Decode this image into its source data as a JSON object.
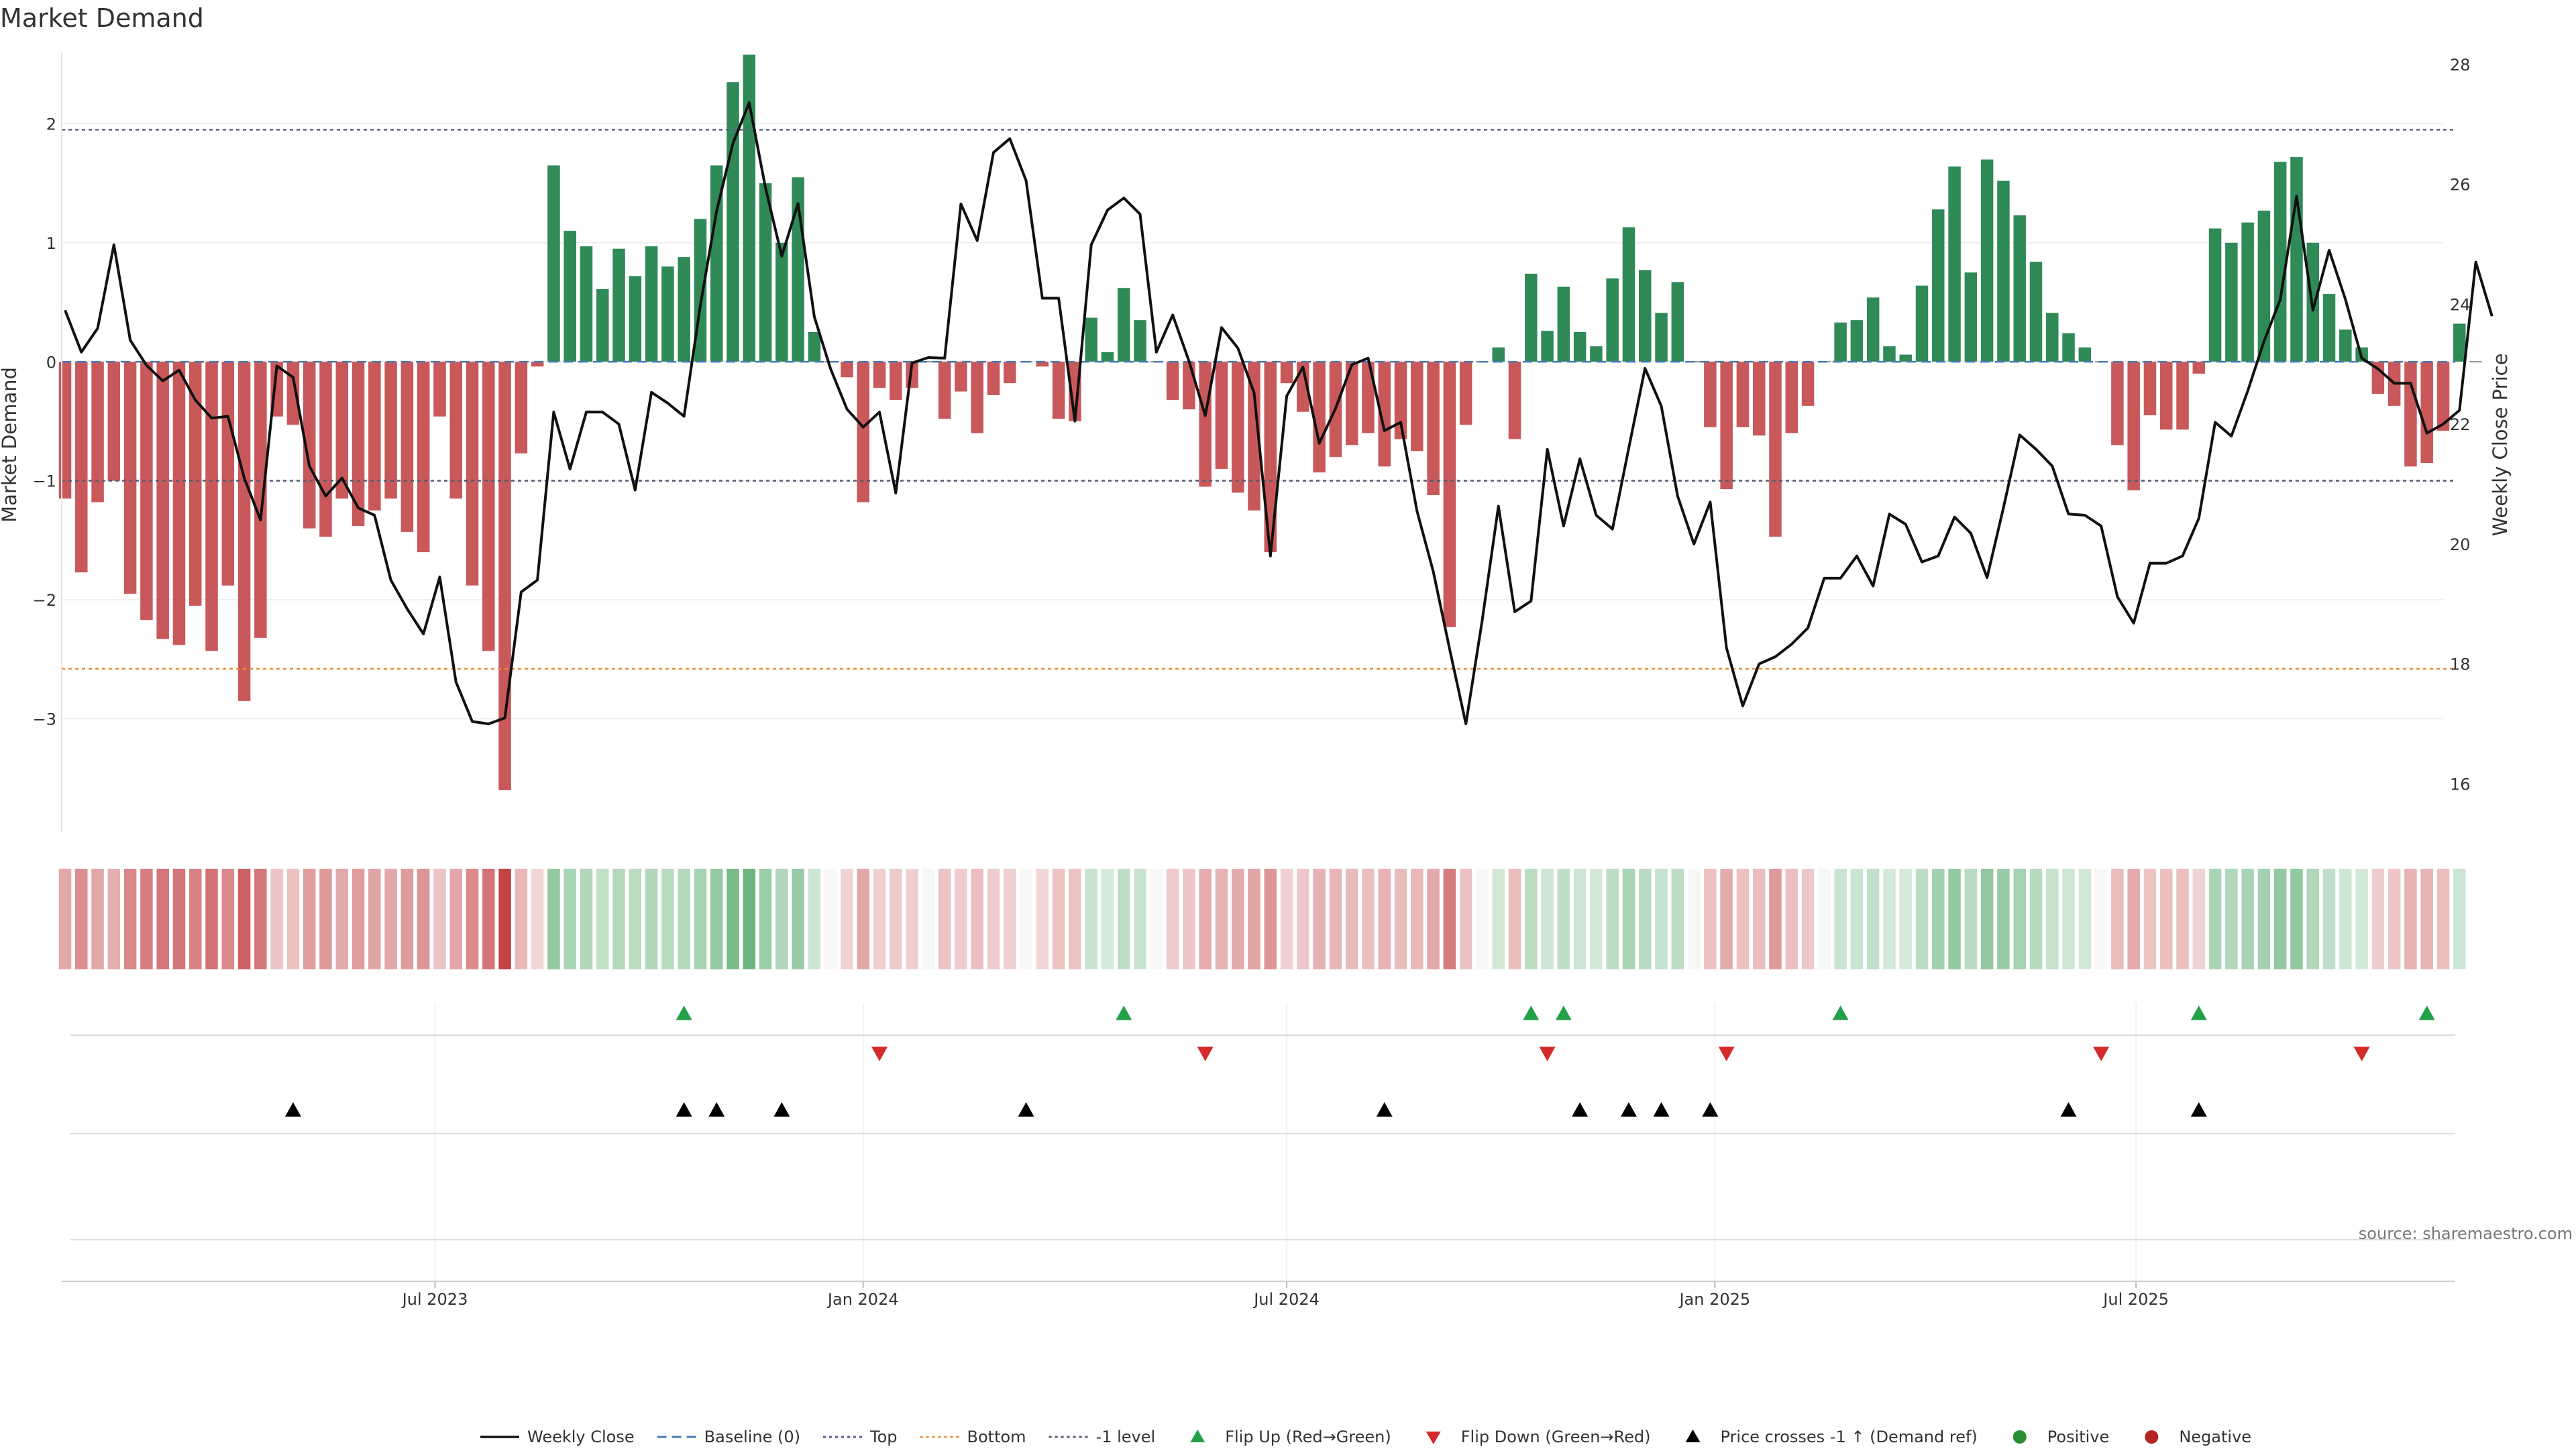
{
  "chart_data": {
    "type": "bar",
    "title": "Market Demand",
    "ylabel": "Market Demand",
    "y2label": "Weekly Close Price",
    "ylim": [
      -3.95,
      2.6
    ],
    "y2lim": [
      15.2,
      28.2
    ],
    "yticks": [
      2,
      1,
      0,
      -1,
      -2,
      -3
    ],
    "yticklabels": [
      "2",
      "1",
      "0",
      "−1",
      "−2",
      "−3"
    ],
    "y2ticks": [
      28,
      26,
      24,
      22,
      20,
      18,
      16
    ],
    "x_start": "2023-01-23",
    "x_end": "2025-11-10",
    "xticks": [
      {
        "date": "2023-07-01",
        "label": "Jul 2023"
      },
      {
        "date": "2024-01-01",
        "label": "Jan 2024"
      },
      {
        "date": "2024-07-01",
        "label": "Jul 2024"
      },
      {
        "date": "2025-01-01",
        "label": "Jan 2025"
      },
      {
        "date": "2025-07-01",
        "label": "Jul 2025"
      }
    ],
    "levels": {
      "baseline": 0,
      "top": 1.95,
      "bottom": -2.58,
      "minus_one": -1
    },
    "bar_dates_start": "2023-01-23",
    "bar_interval": "weekly",
    "bars": [
      -1.15,
      -1.77,
      -1.18,
      -1.0,
      -1.95,
      -2.17,
      -2.33,
      -2.38,
      -2.05,
      -2.43,
      -1.88,
      -2.85,
      -2.32,
      -0.46,
      -0.53,
      -1.4,
      -1.47,
      -1.15,
      -1.38,
      -1.25,
      -1.15,
      -1.43,
      -1.6,
      -0.46,
      -1.15,
      -1.88,
      -2.43,
      -3.6,
      -0.77,
      -0.04,
      1.65,
      1.1,
      0.97,
      0.61,
      0.95,
      0.72,
      0.97,
      0.8,
      0.88,
      1.2,
      1.65,
      2.35,
      2.58,
      1.5,
      1.0,
      1.55,
      0.25,
      0,
      -0.13,
      -1.18,
      -0.22,
      -0.32,
      -0.22,
      0,
      -0.48,
      -0.25,
      -0.6,
      -0.28,
      -0.18,
      0,
      -0.04,
      -0.48,
      -0.5,
      0.37,
      0.08,
      0.62,
      0.35,
      0,
      -0.32,
      -0.4,
      -1.05,
      -0.9,
      -1.1,
      -1.25,
      -1.6,
      -0.18,
      -0.42,
      -0.93,
      -0.8,
      -0.7,
      -0.6,
      -0.88,
      -0.65,
      -0.75,
      -1.12,
      -2.23,
      -0.53,
      0,
      0.12,
      -0.65,
      0.74,
      0.26,
      0.63,
      0.25,
      0.13,
      0.7,
      1.13,
      0.77,
      0.41,
      0.67,
      0,
      -0.55,
      -1.07,
      -0.55,
      -0.62,
      -1.47,
      -0.6,
      -0.37,
      0,
      0.33,
      0.35,
      0.54,
      0.13,
      0.06,
      0.64,
      1.28,
      1.64,
      0.75,
      1.7,
      1.52,
      1.23,
      0.84,
      0.41,
      0.24,
      0.12,
      0,
      -0.7,
      -1.08,
      -0.45,
      -0.57,
      -0.57,
      -0.1,
      1.12,
      1.0,
      1.17,
      1.27,
      1.68,
      1.72,
      1.0,
      0.57,
      0.27,
      0.12,
      -0.27,
      -0.37,
      -0.88,
      -0.85,
      -0.58,
      0.32,
      0
    ],
    "series": [
      {
        "name": "Weekly Close",
        "values": [
          23.9,
          23.2,
          23.6,
          24.99,
          23.4,
          22.98,
          22.72,
          22.9,
          22.4,
          22.1,
          22.13,
          21.1,
          20.4,
          22.97,
          22.78,
          21.3,
          20.8,
          21.1,
          20.6,
          20.48,
          19.4,
          18.92,
          18.5,
          19.45,
          17.7,
          17.04,
          17.0,
          17.1,
          19.2,
          19.4,
          22.2,
          21.25,
          22.2,
          22.2,
          22.0,
          20.9,
          22.53,
          22.35,
          22.13,
          23.98,
          25.55,
          26.68,
          27.36,
          25.94,
          24.8,
          25.68,
          23.79,
          22.92,
          22.25,
          21.95,
          22.2,
          20.85,
          23.02,
          23.11,
          23.1,
          25.67,
          25.06,
          26.53,
          26.76,
          26.06,
          24.1,
          24.1,
          22.05,
          24.99,
          25.57,
          25.77,
          25.5,
          23.2,
          23.82,
          23.05,
          22.14,
          23.61,
          23.27,
          22.52,
          19.8,
          22.47,
          22.95,
          21.68,
          22.26,
          22.99,
          23.1,
          21.89,
          22.03,
          20.55,
          19.54,
          18.25,
          17.0,
          18.72,
          20.63,
          18.87,
          19.05,
          21.58,
          20.3,
          21.42,
          20.48,
          20.25,
          21.6,
          22.93,
          22.3,
          20.8,
          20.0,
          20.7,
          18.27,
          17.3,
          18.0,
          18.12,
          18.33,
          18.6,
          19.43,
          19.43,
          19.8,
          19.3,
          20.5,
          20.33,
          19.7,
          19.8,
          20.45,
          20.18,
          19.44,
          20.6,
          21.82,
          21.58,
          21.3,
          20.5,
          20.48,
          20.3,
          19.12,
          18.68,
          19.68,
          19.68,
          19.8,
          20.43,
          22.03,
          21.8,
          22.55,
          23.38,
          24.08,
          25.8,
          23.9,
          24.9,
          24.08,
          23.1,
          22.92,
          22.68,
          22.68,
          21.85,
          22.0,
          22.23,
          24.7,
          23.8
        ]
      }
    ],
    "price_dates_start": "2023-01-23",
    "flip_up": [
      "2023-10-16",
      "2024-04-22",
      "2024-10-14",
      "2024-10-28",
      "2025-02-24",
      "2025-07-28",
      "2025-11-03"
    ],
    "flip_down": [
      "2024-01-08",
      "2024-05-27",
      "2024-10-21",
      "2025-01-06",
      "2025-06-16",
      "2025-10-06"
    ],
    "price_crosses": [
      "2023-05-01",
      "2023-10-16",
      "2023-10-30",
      "2023-11-27",
      "2024-03-11",
      "2024-08-12",
      "2024-11-04",
      "2024-11-25",
      "2024-12-09",
      "2024-12-30",
      "2025-06-02",
      "2025-07-28"
    ],
    "legend": [
      {
        "label": "Weekly Close",
        "kind": "line",
        "color": "#111111"
      },
      {
        "label": "Baseline (0)",
        "kind": "dash",
        "color": "#4a7ab8"
      },
      {
        "label": "Top",
        "kind": "dot",
        "color": "#5a5f8a"
      },
      {
        "label": "Bottom",
        "kind": "dot",
        "color": "#e5902e"
      },
      {
        "label": "-1 level",
        "kind": "dot",
        "color": "#555a70"
      },
      {
        "label": "Flip Up (Red→Green)",
        "kind": "tri-up",
        "color": "#24a04a"
      },
      {
        "label": "Flip Down (Green→Red)",
        "kind": "tri-down",
        "color": "#d42a2a"
      },
      {
        "label": "Price crosses -1 ↑ (Demand ref)",
        "kind": "tri-up",
        "color": "#000000"
      },
      {
        "label": "Positive",
        "kind": "circle",
        "color": "#2a8f32"
      },
      {
        "label": "Negative",
        "kind": "circle",
        "color": "#b42424"
      }
    ],
    "grid": true,
    "legend_position": "bottom-center",
    "colors": {
      "positive": "#2f8a57",
      "negative": "#c9585a",
      "price": "#111111"
    }
  },
  "source": "source: sharemaestro.com"
}
